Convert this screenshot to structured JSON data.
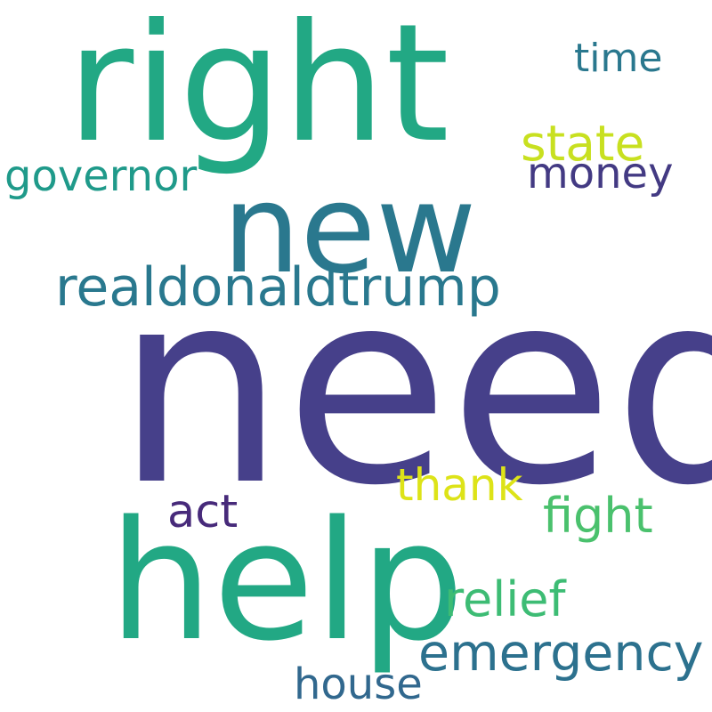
{
  "words": [
    {
      "text": "need",
      "color": "#46408a"
    },
    {
      "text": "right",
      "color": "#22a884"
    },
    {
      "text": "help",
      "color": "#22a884"
    },
    {
      "text": "new",
      "color": "#2a788e"
    },
    {
      "text": "realdonaldtrump",
      "color": "#29788e"
    },
    {
      "text": "state",
      "color": "#c8e020"
    },
    {
      "text": "money",
      "color": "#433a83"
    },
    {
      "text": "governor",
      "color": "#1f9a8a"
    },
    {
      "text": "time",
      "color": "#2a788e"
    },
    {
      "text": "fight",
      "color": "#4ac16d"
    },
    {
      "text": "thank",
      "color": "#dde318"
    },
    {
      "text": "act",
      "color": "#472a7a"
    },
    {
      "text": "relief",
      "color": "#3dbc74"
    },
    {
      "text": "emergency",
      "color": "#2c718e"
    },
    {
      "text": "house",
      "color": "#31688e"
    }
  ]
}
